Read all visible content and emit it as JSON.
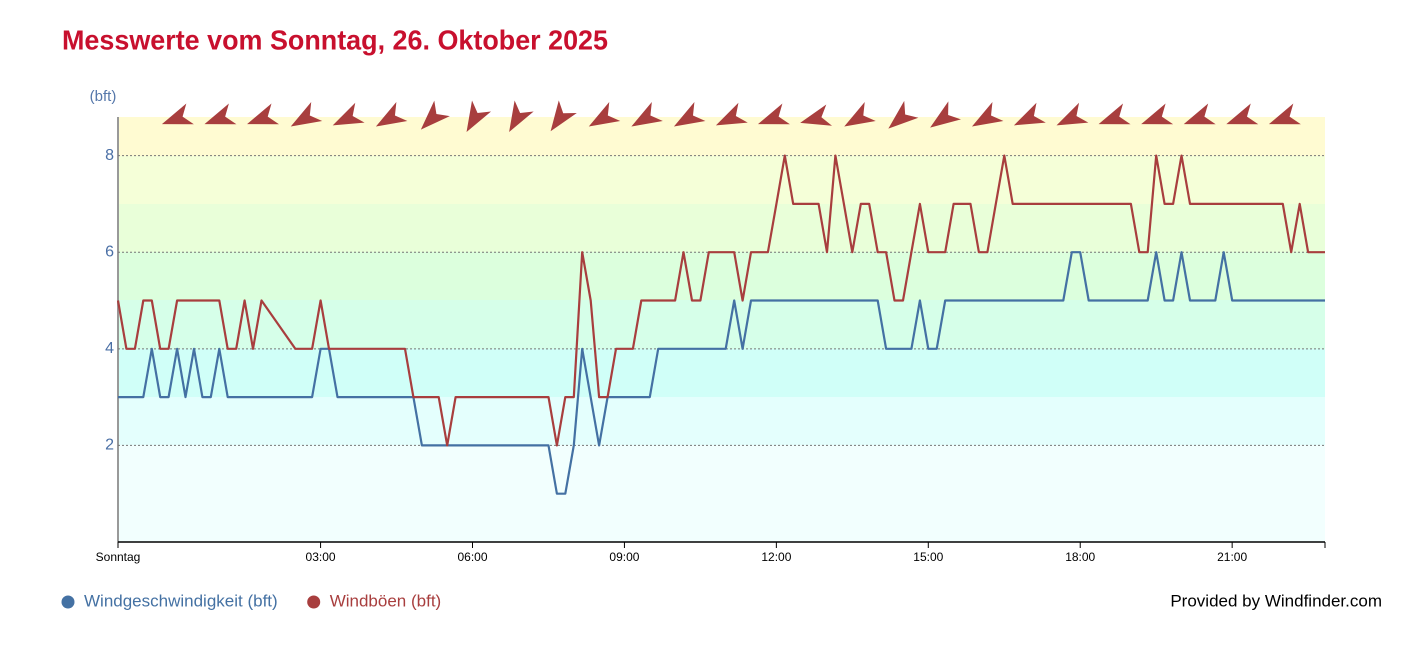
{
  "chart_data": {
    "type": "line",
    "title": "Messwerte vom Sonntag, 26. Oktober 2025",
    "y_label": "(bft)",
    "credit": "Provided by Windfinder.com",
    "xlim": [
      -60,
      1370
    ],
    "xticks": [
      {
        "value": -60,
        "label": "Sonntag"
      },
      {
        "value": 180,
        "label": "03:00"
      },
      {
        "value": 360,
        "label": "06:00"
      },
      {
        "value": 540,
        "label": "09:00"
      },
      {
        "value": 720,
        "label": "12:00"
      },
      {
        "value": 900,
        "label": "15:00"
      },
      {
        "value": 1080,
        "label": "18:00"
      },
      {
        "value": 1260,
        "label": "21:00"
      }
    ],
    "ylim": [
      0,
      8.8
    ],
    "yticks": [
      2,
      4,
      6,
      8
    ],
    "grid": true,
    "legend": "bottom-left",
    "wind_direction": [
      70,
      70,
      70,
      60,
      65,
      60,
      45,
      30,
      30,
      35,
      60,
      60,
      60,
      65,
      70,
      75,
      60,
      50,
      55,
      60,
      65,
      65,
      70,
      70,
      70,
      70,
      70
    ],
    "direction_color": "#a83e3e",
    "series": [
      {
        "name": "Windgeschwindigkeit (bft)",
        "color": "#4471a3",
        "x": [
          -60,
          -30,
          -20,
          -10,
          0,
          10,
          20,
          30,
          40,
          50,
          60,
          70,
          170,
          180,
          190,
          200,
          290,
          300,
          450,
          460,
          470,
          480,
          490,
          510,
          520,
          570,
          580,
          660,
          670,
          680,
          690,
          840,
          850,
          880,
          890,
          900,
          910,
          920,
          1060,
          1070,
          1080,
          1090,
          1160,
          1170,
          1180,
          1190,
          1200,
          1210,
          1240,
          1250,
          1260,
          1370
        ],
        "values": [
          3,
          3,
          4,
          3,
          3,
          4,
          3,
          4,
          3,
          3,
          4,
          3,
          3,
          4,
          4,
          3,
          3,
          2,
          2,
          1,
          1,
          2,
          4,
          2,
          3,
          3,
          4,
          4,
          5,
          4,
          5,
          5,
          4,
          4,
          5,
          4,
          4,
          5,
          5,
          6,
          6,
          5,
          5,
          6,
          5,
          5,
          6,
          5,
          5,
          6,
          5,
          5
        ]
      },
      {
        "name": "Windböen (bft)",
        "color": "#a83e3e",
        "x": [
          -60,
          -50,
          -40,
          -30,
          -20,
          -10,
          0,
          10,
          60,
          70,
          80,
          90,
          100,
          110,
          150,
          170,
          180,
          190,
          280,
          290,
          320,
          330,
          340,
          450,
          460,
          470,
          480,
          490,
          500,
          510,
          520,
          530,
          550,
          560,
          600,
          610,
          620,
          630,
          640,
          670,
          680,
          690,
          710,
          720,
          730,
          740,
          770,
          780,
          790,
          800,
          810,
          820,
          830,
          840,
          850,
          860,
          870,
          880,
          890,
          900,
          920,
          930,
          950,
          960,
          970,
          980,
          990,
          1000,
          1140,
          1150,
          1160,
          1170,
          1180,
          1190,
          1200,
          1210,
          1320,
          1330,
          1340,
          1350,
          1370
        ],
        "values": [
          5,
          4,
          4,
          5,
          5,
          4,
          4,
          5,
          5,
          4,
          4,
          5,
          4,
          5,
          4,
          4,
          5,
          4,
          4,
          3,
          3,
          2,
          3,
          3,
          2,
          3,
          3,
          6,
          5,
          3,
          3,
          4,
          4,
          5,
          5,
          6,
          5,
          5,
          6,
          6,
          5,
          6,
          6,
          7,
          8,
          7,
          7,
          6,
          8,
          7,
          6,
          7,
          7,
          6,
          6,
          5,
          5,
          6,
          7,
          6,
          6,
          7,
          7,
          6,
          6,
          7,
          8,
          7,
          7,
          6,
          6,
          8,
          7,
          7,
          8,
          7,
          7,
          6,
          7,
          6,
          6
        ]
      }
    ]
  }
}
